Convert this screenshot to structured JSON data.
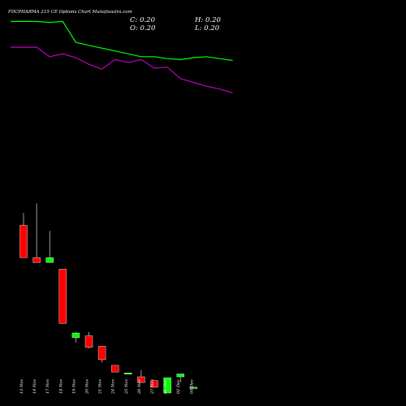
{
  "chart_data": {
    "type": "candlestick",
    "title": "FDCPHARMA 215 CE Options  Chart Munafasutra.com",
    "ohlc_readout": {
      "c": "C: 0.20",
      "h": "H: 0.20",
      "o": "O: 0.20",
      "l": "L: 0.20"
    },
    "categories": [
      "13 Nov",
      "14 Nov",
      "17 Nov",
      "18 Nov",
      "19 Nov",
      "20 Nov",
      "21 Nov",
      "24 Nov",
      "25 Nov",
      "26 Nov",
      "27 Nov",
      "01 Dec",
      "02 Dec",
      "04 Dec"
    ],
    "candles": [
      {
        "open": 8.2,
        "high": 9.5,
        "low": 4.8,
        "close": 4.8,
        "color": "red"
      },
      {
        "open": 4.8,
        "high": 10.5,
        "low": 4.3,
        "close": 4.3,
        "color": "red"
      },
      {
        "open": 4.3,
        "high": 7.6,
        "low": 4.3,
        "close": 4.8,
        "color": "green"
      },
      {
        "open": 3.6,
        "high": 3.6,
        "low": -2.1,
        "close": -2.1,
        "color": "red"
      },
      {
        "open": -3.6,
        "high": -3.0,
        "low": -4.1,
        "close": -3.1,
        "color": "green"
      },
      {
        "open": -3.4,
        "high": -3.0,
        "low": -4.7,
        "close": -4.6,
        "color": "red"
      },
      {
        "open": -4.5,
        "high": -4.5,
        "low": -6.2,
        "close": -5.9,
        "color": "red"
      },
      {
        "open": -6.5,
        "high": -6.5,
        "low": -7.2,
        "close": -7.2,
        "color": "red"
      },
      {
        "open": -7.3,
        "high": -7.3,
        "low": -7.4,
        "close": -7.4,
        "color": "green"
      },
      {
        "open": -7.7,
        "high": -7.0,
        "low": -8.3,
        "close": -8.3,
        "color": "red"
      },
      {
        "open": -8.1,
        "high": -8.1,
        "low": -8.8,
        "close": -8.8,
        "color": "red"
      },
      {
        "open": -9.4,
        "high": -7.8,
        "low": -9.4,
        "close": -7.8,
        "color": "green"
      },
      {
        "open": -7.7,
        "high": -7.4,
        "low": -8.3,
        "close": -7.4,
        "color": "green"
      },
      {
        "open": -8.8,
        "high": -8.8,
        "low": -8.9,
        "close": -8.9,
        "color": "green"
      }
    ],
    "moving_averages": [
      {
        "color": "#00ff00",
        "x": [
          -1,
          0,
          1,
          2,
          3,
          4,
          5,
          6,
          7,
          8,
          9,
          10,
          11,
          12,
          13,
          14,
          15,
          16
        ],
        "values": [
          29.6,
          29.6,
          29.6,
          29.5,
          29.6,
          27.4,
          27.1,
          26.8,
          26.5,
          26.2,
          25.9,
          25.9,
          25.7,
          25.6,
          25.8,
          25.9,
          25.7,
          25.5
        ]
      },
      {
        "color": "#c000c0",
        "x": [
          -1,
          0,
          1,
          2,
          3,
          4,
          5,
          6,
          7,
          8,
          9,
          10,
          11,
          12,
          13,
          14,
          15,
          16
        ],
        "values": [
          26.9,
          26.9,
          26.9,
          25.9,
          26.2,
          25.8,
          25.1,
          24.6,
          25.6,
          25.3,
          25.6,
          24.7,
          24.8,
          23.6,
          23.2,
          22.8,
          22.5,
          22.1
        ]
      }
    ],
    "ylim": [
      -10,
      31
    ],
    "xlabel": "",
    "ylabel": "",
    "grid": false,
    "legend": ""
  }
}
